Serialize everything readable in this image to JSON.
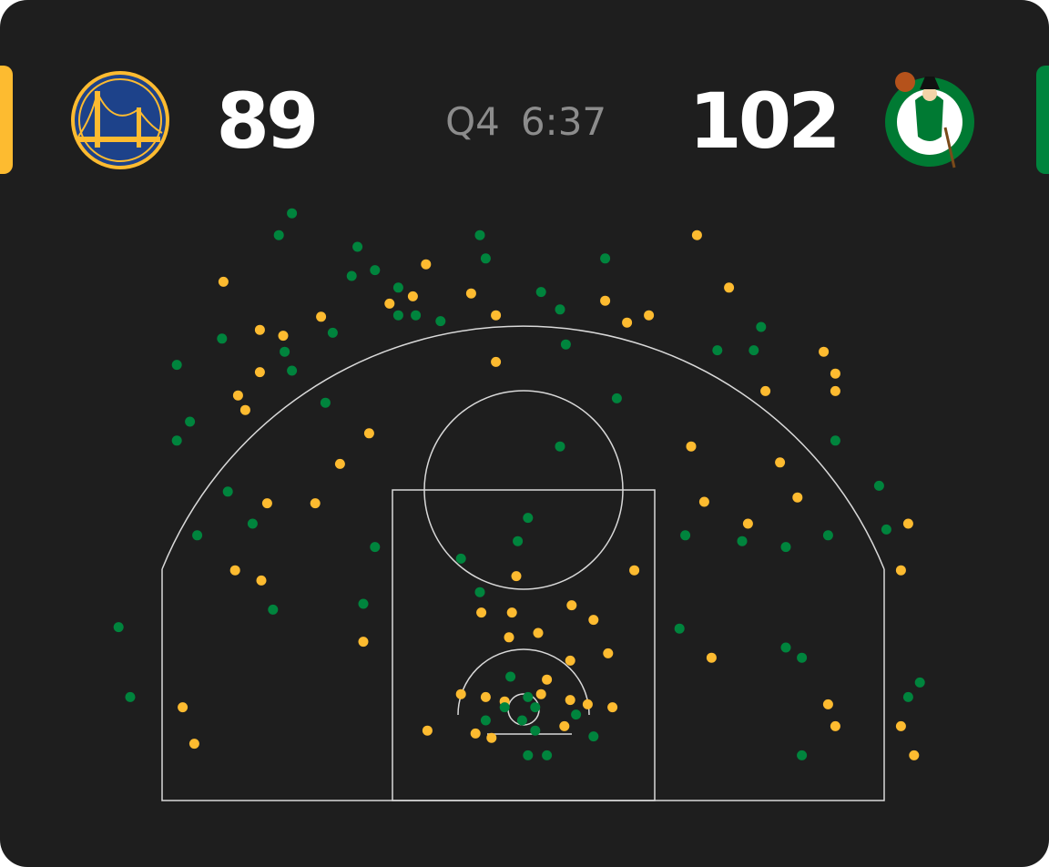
{
  "header": {
    "home_score": "89",
    "period": "Q4",
    "clock": "6:37",
    "away_score": "102"
  },
  "chart_data": {
    "type": "scatter",
    "series": [
      {
        "color": "#fdbb30",
        "x": [
          11.9,
          -20.6,
          -6.7,
          14.1,
          -7.6,
          -3.6,
          -9.2,
          5.6,
          -13.9,
          -1.9,
          8.6,
          7.1,
          -18.1,
          -16.5,
          -18.1,
          -1.9,
          20.6,
          21.4,
          21.4,
          16.6,
          -19.6,
          -19.1,
          -10.6,
          11.5,
          -12.6,
          17.6,
          -17.6,
          -14.3,
          12.4,
          18.8,
          15.4,
          26.4,
          -19.8,
          -18.0,
          -0.5,
          7.6,
          25.9,
          3.3,
          -2.9,
          -0.8,
          4.8,
          1.0,
          -1.0,
          -11.0,
          5.8,
          12.9,
          3.2,
          1.6,
          -4.3,
          -2.6,
          -1.3,
          1.2,
          3.2,
          4.4,
          6.1,
          -23.4,
          20.9,
          -6.6,
          -3.3,
          -2.2,
          2.8,
          21.4,
          25.9,
          -22.6,
          26.8
        ],
        "values": [
          38.8,
          35.6,
          36.8,
          35.2,
          34.6,
          34.8,
          34.1,
          34.3,
          33.2,
          33.3,
          33.3,
          32.8,
          32.3,
          31.9,
          29.4,
          30.1,
          30.8,
          29.3,
          28.1,
          28.1,
          27.8,
          26.8,
          25.2,
          24.3,
          23.1,
          23.2,
          20.4,
          20.4,
          20.5,
          20.8,
          19.0,
          19.0,
          15.8,
          15.1,
          15.4,
          15.8,
          15.8,
          13.4,
          12.9,
          12.9,
          12.4,
          11.5,
          11.2,
          10.9,
          10.1,
          9.8,
          9.6,
          8.3,
          7.3,
          7.1,
          6.8,
          7.3,
          6.9,
          6.6,
          6.4,
          6.4,
          6.6,
          4.8,
          4.6,
          4.3,
          5.1,
          5.1,
          5.1,
          3.9,
          3.1
        ]
      },
      {
        "color": "#00843d",
        "x": [
          -15.9,
          -16.8,
          -11.4,
          -3.0,
          -2.6,
          5.6,
          -10.2,
          -11.8,
          -8.6,
          1.2,
          2.5,
          -8.6,
          -7.4,
          -5.7,
          -13.1,
          -20.7,
          -16.4,
          16.3,
          15.8,
          13.3,
          2.9,
          -23.8,
          -15.9,
          6.4,
          -13.6,
          -22.9,
          -23.8,
          2.5,
          21.4,
          24.4,
          -20.3,
          0.3,
          -18.6,
          24.9,
          -22.4,
          -0.4,
          11.1,
          15.0,
          18.0,
          20.9,
          -10.2,
          -4.3,
          -3.0,
          -11.0,
          -17.2,
          -27.8,
          10.7,
          18.0,
          19.1,
          27.2,
          26.4,
          -27.0,
          -0.9,
          0.3,
          -1.3,
          0.8,
          -2.6,
          -0.1,
          3.6,
          0.8,
          4.8,
          0.3,
          1.6,
          19.1
        ],
        "values": [
          40.3,
          38.8,
          38.0,
          38.8,
          37.2,
          37.2,
          36.4,
          36.0,
          35.2,
          34.9,
          33.7,
          33.3,
          33.3,
          32.9,
          32.1,
          31.7,
          30.8,
          32.5,
          30.9,
          30.9,
          31.3,
          29.9,
          29.5,
          27.6,
          27.3,
          26.0,
          24.7,
          24.3,
          24.7,
          21.6,
          21.2,
          19.4,
          19.0,
          18.6,
          18.2,
          17.8,
          18.2,
          17.8,
          17.4,
          18.2,
          17.4,
          16.6,
          14.3,
          13.5,
          13.1,
          11.9,
          11.8,
          10.5,
          9.8,
          8.1,
          7.1,
          7.1,
          8.5,
          7.1,
          6.4,
          6.4,
          5.5,
          5.5,
          5.9,
          4.8,
          4.4,
          3.1,
          3.1,
          3.1
        ]
      }
    ]
  }
}
